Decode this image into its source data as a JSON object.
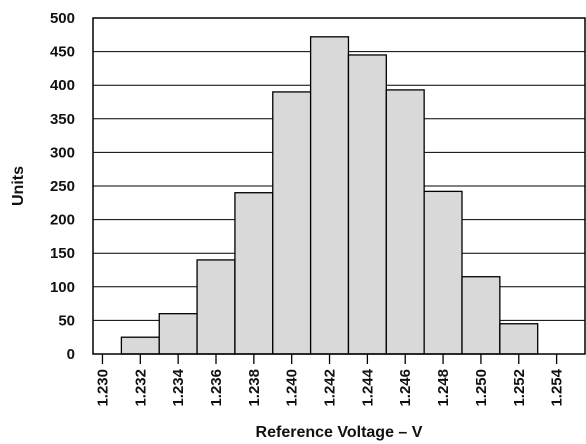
{
  "chart_data": {
    "type": "bar",
    "title": "",
    "xlabel": "Reference Voltage – V",
    "ylabel": "Units",
    "x_ticks": [
      "1.230",
      "1.232",
      "1.234",
      "1.236",
      "1.238",
      "1.240",
      "1.242",
      "1.244",
      "1.246",
      "1.248",
      "1.250",
      "1.252",
      "1.254"
    ],
    "y_ticks": [
      "0",
      "50",
      "100",
      "150",
      "200",
      "250",
      "300",
      "350",
      "400",
      "450",
      "500"
    ],
    "ylim": [
      0,
      500
    ],
    "bins": [
      {
        "from": 1.231,
        "to": 1.233,
        "value": 25
      },
      {
        "from": 1.233,
        "to": 1.235,
        "value": 60
      },
      {
        "from": 1.235,
        "to": 1.237,
        "value": 140
      },
      {
        "from": 1.237,
        "to": 1.239,
        "value": 240
      },
      {
        "from": 1.239,
        "to": 1.241,
        "value": 390
      },
      {
        "from": 1.241,
        "to": 1.243,
        "value": 472
      },
      {
        "from": 1.243,
        "to": 1.245,
        "value": 445
      },
      {
        "from": 1.245,
        "to": 1.247,
        "value": 393
      },
      {
        "from": 1.247,
        "to": 1.249,
        "value": 242
      },
      {
        "from": 1.249,
        "to": 1.251,
        "value": 115
      },
      {
        "from": 1.251,
        "to": 1.253,
        "value": 45
      }
    ],
    "grid": "horizontal",
    "bar_color": "#d9d9d9"
  }
}
